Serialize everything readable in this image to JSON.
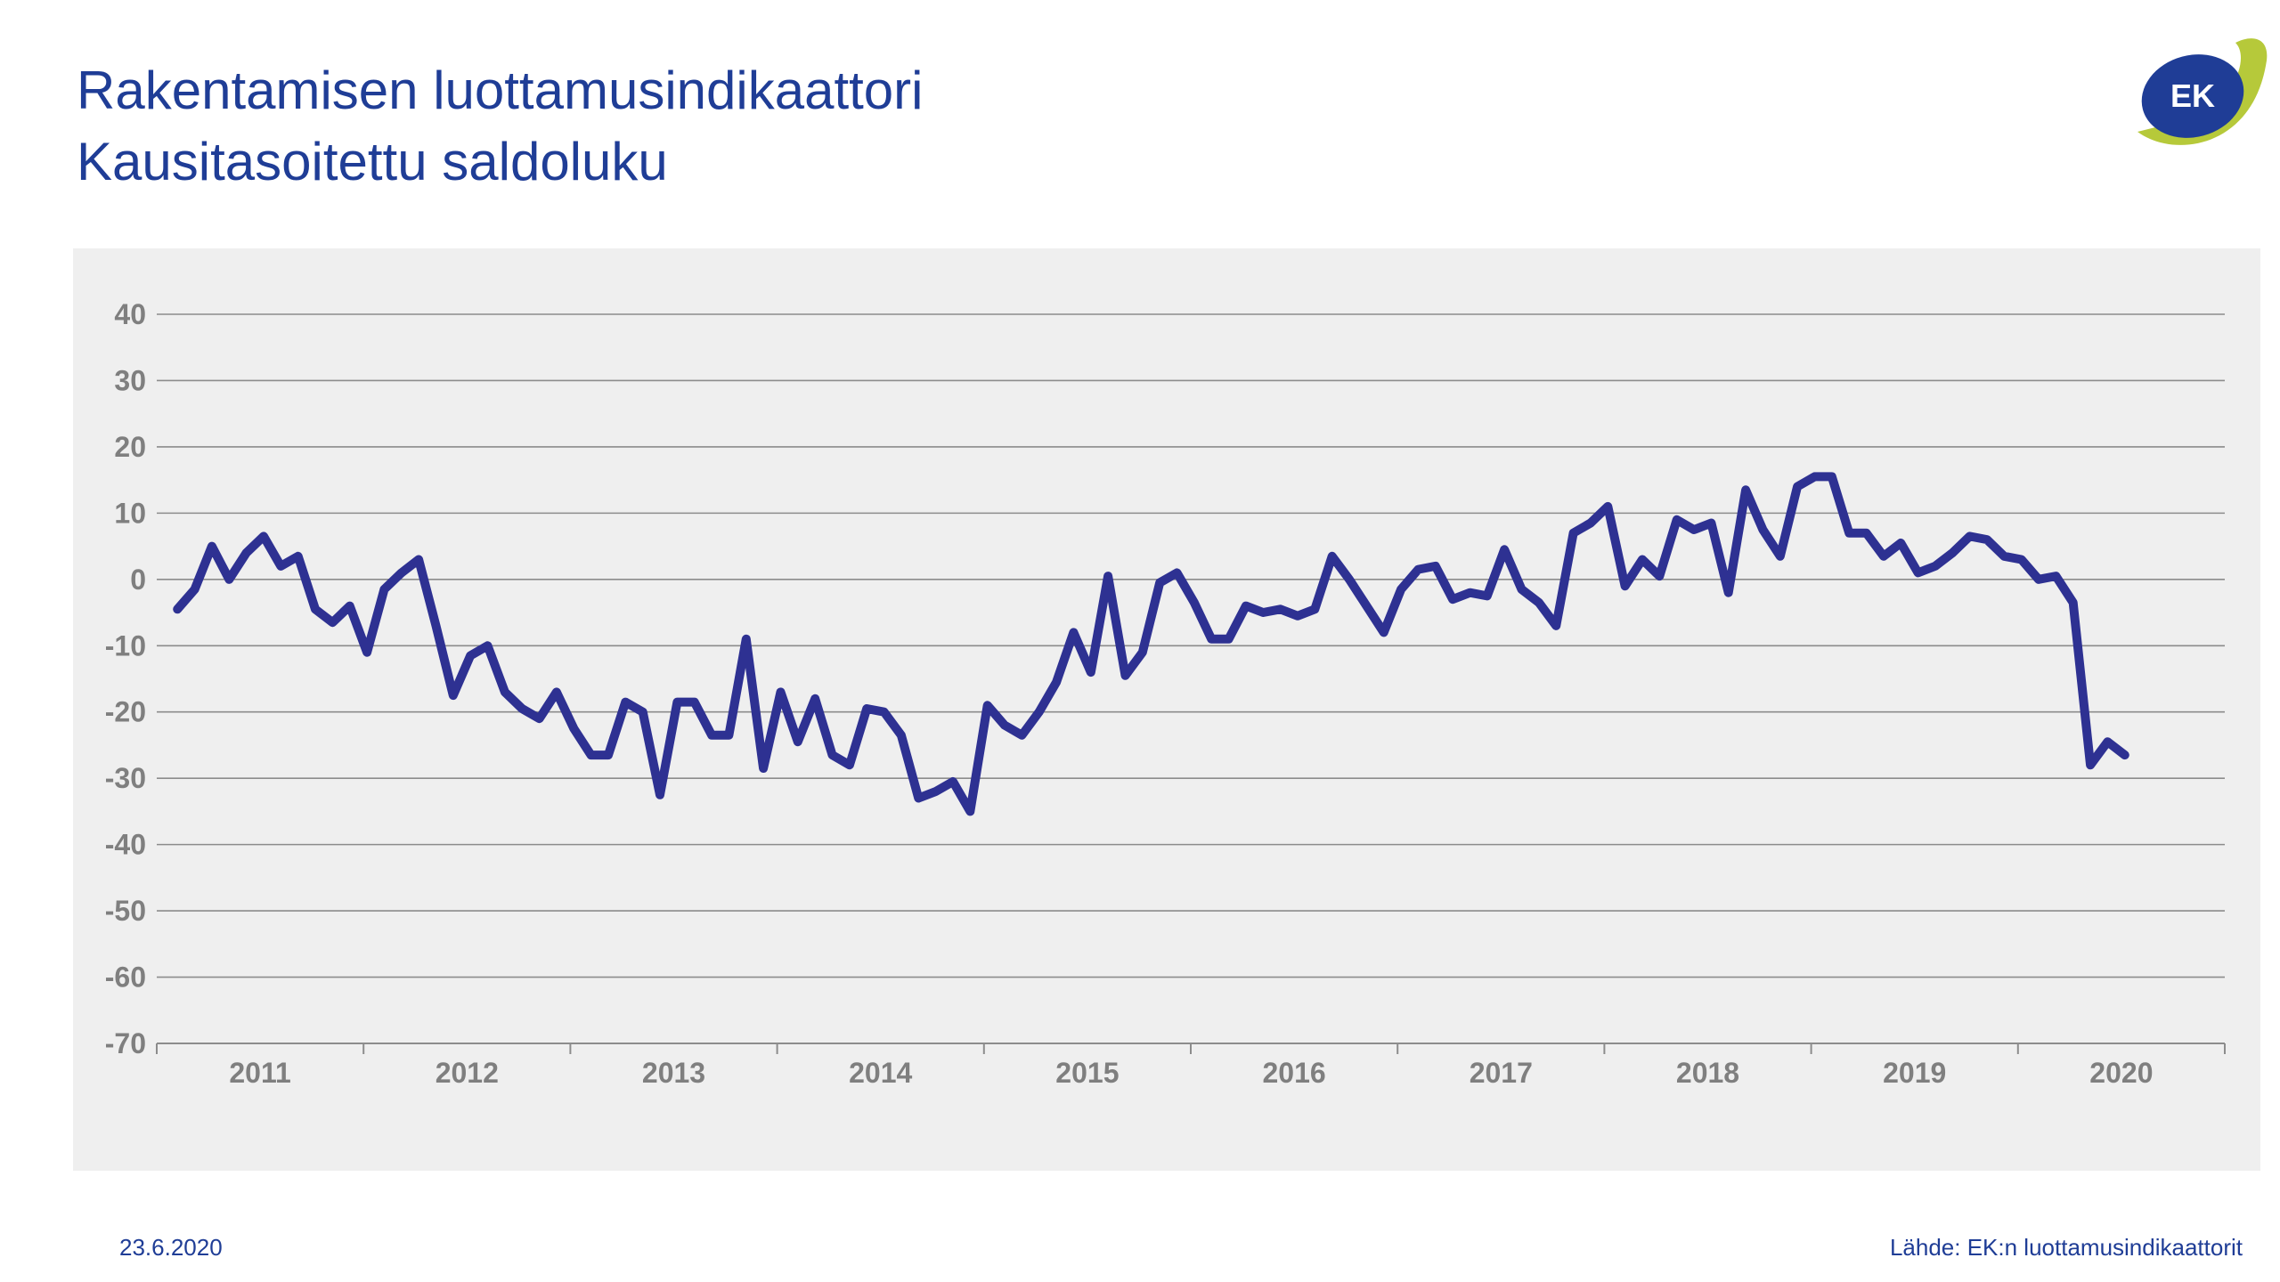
{
  "header": {
    "title_line1": "Rakentamisen luottamusindikaattori",
    "title_line2": "Kausitasoitettu saldoluku"
  },
  "logo": {
    "text": "EK",
    "icon": "ek-logo-icon"
  },
  "footer": {
    "date": "23.6.2020",
    "source": "Lähde: EK:n luottamusindikaattorit"
  },
  "colors": {
    "title": "#1f3d96",
    "series": "#2e3192",
    "panel": "#efefef",
    "grid": "#8c8c8c",
    "tick_text": "#7f7f7f",
    "logo_green": "#b6c93a",
    "logo_blue": "#1f3d96"
  },
  "chart_data": {
    "type": "line",
    "title": "",
    "xlabel": "",
    "ylabel": "",
    "ylim": [
      -70,
      40
    ],
    "yticks": [
      40,
      30,
      20,
      10,
      0,
      -10,
      -20,
      -30,
      -40,
      -50,
      -60,
      -70
    ],
    "x_categories": [
      "2011",
      "2012",
      "2013",
      "2014",
      "2015",
      "2016",
      "2017",
      "2018",
      "2019",
      "2020"
    ],
    "grid": true,
    "legend": "none",
    "series": [
      {
        "name": "",
        "start": "2011-01",
        "frequency": "monthly",
        "values": [
          -4.5,
          -1.5,
          5,
          0,
          4,
          6.5,
          2,
          3.5,
          -4.5,
          -6.5,
          -4,
          -11,
          -1.5,
          1,
          3,
          -7,
          -17.5,
          -11.5,
          -10,
          -17,
          -19.5,
          -21,
          -17,
          -22.5,
          -26.5,
          -26.5,
          -18.5,
          -20,
          -32.5,
          -18.5,
          -18.5,
          -23.5,
          -23.5,
          -9,
          -28.5,
          -17,
          -24.5,
          -18,
          -26.5,
          -28,
          -19.5,
          -20,
          -23.5,
          -33,
          -32,
          -30.5,
          -35,
          -19,
          -22,
          -23.5,
          -20,
          -15.5,
          -8,
          -14,
          0.5,
          -14.5,
          -11,
          -0.5,
          1,
          -3.5,
          -9,
          -9,
          -4,
          -5,
          -4.5,
          -5.5,
          -4.5,
          3.5,
          0,
          -4,
          -8,
          -1.5,
          1.5,
          2,
          -3,
          -2,
          -2.5,
          4.5,
          -1.5,
          -3.5,
          -7,
          7,
          8.5,
          11,
          -1,
          3,
          0.5,
          9,
          7.5,
          8.5,
          -2,
          13.5,
          7.5,
          3.5,
          14,
          15.5,
          15.5,
          7,
          7,
          3.5,
          5.5,
          1,
          2,
          4,
          6.5,
          6,
          3.5,
          3,
          0,
          0.5,
          -3.5,
          -28,
          -24.5,
          -26.5
        ]
      }
    ]
  }
}
